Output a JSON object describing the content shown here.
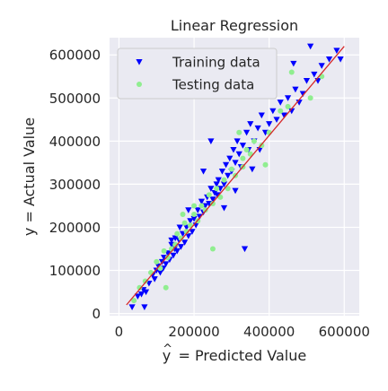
{
  "chart_data": {
    "type": "scatter",
    "title": "Linear Regression",
    "xlabel": "ŷ = Predicted Value",
    "ylabel": "y = Actual Value",
    "xlim": [
      -25000,
      640000
    ],
    "ylim": [
      -5000,
      640000
    ],
    "x_ticks": [
      0,
      200000,
      400000,
      600000
    ],
    "x_tick_labels": [
      "0",
      "200000",
      "400000",
      "600000"
    ],
    "y_ticks": [
      0,
      100000,
      200000,
      300000,
      400000,
      500000,
      600000
    ],
    "y_tick_labels": [
      "0",
      "100000",
      "200000",
      "300000",
      "400000",
      "500000",
      "600000"
    ],
    "grid": true,
    "background": "#eaeaf2",
    "legend_position": "top-left",
    "series": [
      {
        "name": "Training data",
        "marker": "triangle-down",
        "color": "#0000ff",
        "points": [
          [
            35000,
            15000
          ],
          [
            50000,
            40000
          ],
          [
            60000,
            45000
          ],
          [
            65000,
            55000
          ],
          [
            68000,
            15000
          ],
          [
            72000,
            50000
          ],
          [
            80000,
            70000
          ],
          [
            90000,
            90000
          ],
          [
            95000,
            80000
          ],
          [
            100000,
            100000
          ],
          [
            105000,
            110000
          ],
          [
            110000,
            95000
          ],
          [
            115000,
            120000
          ],
          [
            118000,
            105000
          ],
          [
            120000,
            130000
          ],
          [
            125000,
            115000
          ],
          [
            130000,
            140000
          ],
          [
            135000,
            125000
          ],
          [
            140000,
            160000
          ],
          [
            145000,
            135000
          ],
          [
            148000,
            150000
          ],
          [
            150000,
            175000
          ],
          [
            155000,
            145000
          ],
          [
            160000,
            170000
          ],
          [
            162000,
            200000
          ],
          [
            165000,
            155000
          ],
          [
            170000,
            185000
          ],
          [
            175000,
            165000
          ],
          [
            180000,
            200000
          ],
          [
            185000,
            180000
          ],
          [
            190000,
            215000
          ],
          [
            195000,
            190000
          ],
          [
            200000,
            220000
          ],
          [
            205000,
            205000
          ],
          [
            210000,
            240000
          ],
          [
            215000,
            225000
          ],
          [
            220000,
            260000
          ],
          [
            225000,
            235000
          ],
          [
            230000,
            250000
          ],
          [
            235000,
            270000
          ],
          [
            240000,
            255000
          ],
          [
            245000,
            290000
          ],
          [
            250000,
            265000
          ],
          [
            255000,
            280000
          ],
          [
            260000,
            300000
          ],
          [
            262000,
            275000
          ],
          [
            265000,
            310000
          ],
          [
            270000,
            290000
          ],
          [
            275000,
            330000
          ],
          [
            280000,
            300000
          ],
          [
            285000,
            345000
          ],
          [
            290000,
            320000
          ],
          [
            295000,
            360000
          ],
          [
            300000,
            330000
          ],
          [
            305000,
            380000
          ],
          [
            310000,
            350000
          ],
          [
            315000,
            400000
          ],
          [
            320000,
            370000
          ],
          [
            325000,
            340000
          ],
          [
            330000,
            390000
          ],
          [
            335000,
            150000
          ],
          [
            340000,
            420000
          ],
          [
            345000,
            380000
          ],
          [
            350000,
            440000
          ],
          [
            360000,
            400000
          ],
          [
            370000,
            430000
          ],
          [
            375000,
            380000
          ],
          [
            380000,
            460000
          ],
          [
            390000,
            420000
          ],
          [
            400000,
            440000
          ],
          [
            410000,
            470000
          ],
          [
            420000,
            450000
          ],
          [
            430000,
            490000
          ],
          [
            440000,
            460000
          ],
          [
            450000,
            500000
          ],
          [
            460000,
            470000
          ],
          [
            465000,
            580000
          ],
          [
            470000,
            520000
          ],
          [
            480000,
            490000
          ],
          [
            490000,
            510000
          ],
          [
            500000,
            540000
          ],
          [
            510000,
            620000
          ],
          [
            520000,
            555000
          ],
          [
            530000,
            540000
          ],
          [
            540000,
            575000
          ],
          [
            560000,
            590000
          ],
          [
            580000,
            610000
          ],
          [
            590000,
            590000
          ],
          [
            245000,
            400000
          ],
          [
            185000,
            240000
          ],
          [
            140000,
            170000
          ],
          [
            225000,
            330000
          ],
          [
            280000,
            245000
          ],
          [
            310000,
            285000
          ],
          [
            355000,
            335000
          ]
        ]
      },
      {
        "name": "Testing data",
        "marker": "circle",
        "color": "#90ee90",
        "points": [
          [
            40000,
            30000
          ],
          [
            55000,
            60000
          ],
          [
            70000,
            75000
          ],
          [
            85000,
            95000
          ],
          [
            100000,
            120000
          ],
          [
            110000,
            105000
          ],
          [
            120000,
            145000
          ],
          [
            125000,
            60000
          ],
          [
            130000,
            130000
          ],
          [
            140000,
            150000
          ],
          [
            150000,
            160000
          ],
          [
            155000,
            185000
          ],
          [
            165000,
            175000
          ],
          [
            175000,
            210000
          ],
          [
            180000,
            190000
          ],
          [
            190000,
            205000
          ],
          [
            200000,
            230000
          ],
          [
            210000,
            215000
          ],
          [
            220000,
            250000
          ],
          [
            230000,
            240000
          ],
          [
            240000,
            275000
          ],
          [
            250000,
            255000
          ],
          [
            260000,
            290000
          ],
          [
            270000,
            270000
          ],
          [
            280000,
            310000
          ],
          [
            290000,
            290000
          ],
          [
            300000,
            335000
          ],
          [
            310000,
            320000
          ],
          [
            320000,
            420000
          ],
          [
            330000,
            360000
          ],
          [
            340000,
            380000
          ],
          [
            350000,
            370000
          ],
          [
            360000,
            400000
          ],
          [
            380000,
            390000
          ],
          [
            400000,
            420000
          ],
          [
            430000,
            470000
          ],
          [
            450000,
            480000
          ],
          [
            460000,
            560000
          ],
          [
            510000,
            500000
          ],
          [
            540000,
            550000
          ],
          [
            250000,
            150000
          ],
          [
            200000,
            250000
          ],
          [
            170000,
            230000
          ],
          [
            330000,
            340000
          ],
          [
            390000,
            345000
          ]
        ]
      }
    ],
    "fit_line": {
      "color": "#d62728",
      "from": [
        20000,
        20000
      ],
      "to": [
        600000,
        620000
      ]
    }
  }
}
